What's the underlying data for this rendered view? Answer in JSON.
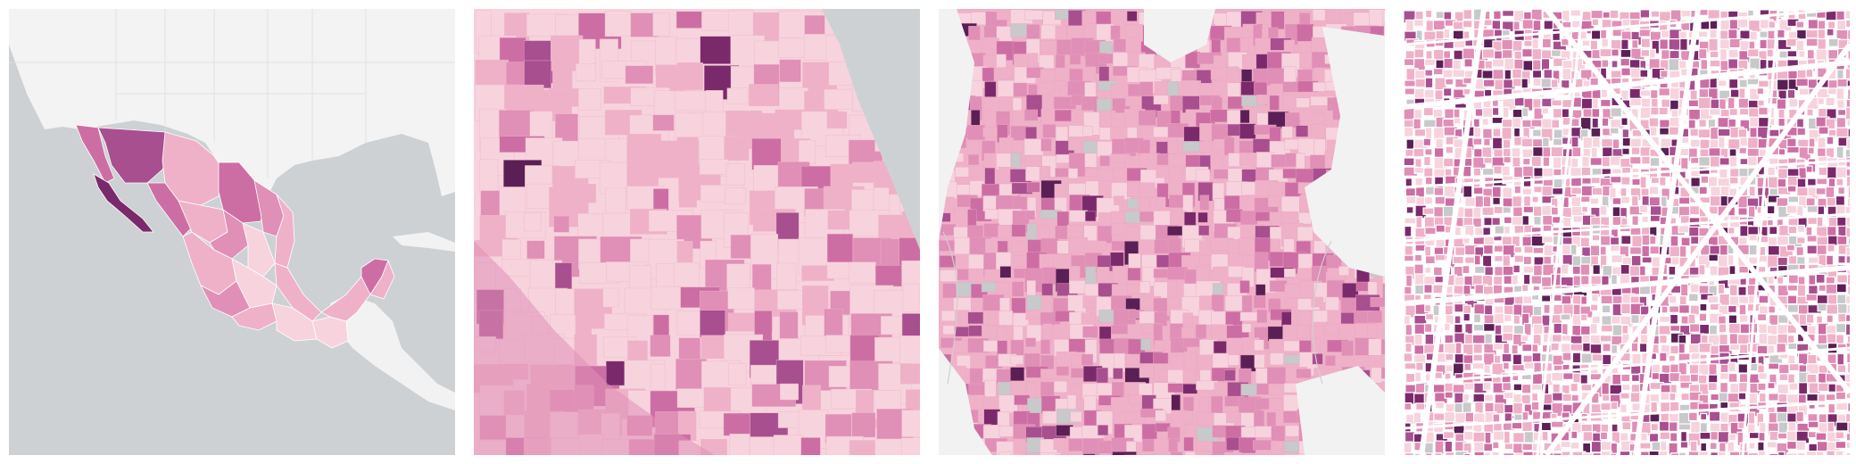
{
  "figure": {
    "panels": [
      {
        "id": "national",
        "scale": "states",
        "description_level": "country"
      },
      {
        "id": "regional",
        "scale": "municipalities",
        "description_level": "region"
      },
      {
        "id": "metro",
        "scale": "neighborhoods",
        "description_level": "metropolitan"
      },
      {
        "id": "urban",
        "scale": "blocks",
        "description_level": "city-blocks"
      }
    ],
    "colors": {
      "water": "#cdd1d4",
      "land_outside": "#f2f2f2",
      "nodata": "#c7c9ca",
      "road": "#ffffff",
      "border": "#d6d6d6",
      "ramp": [
        "#f7d3dd",
        "#efb1c8",
        "#e08fb6",
        "#cc6ea4",
        "#a84f8f",
        "#7a2a6b",
        "#5a1f54"
      ]
    }
  }
}
